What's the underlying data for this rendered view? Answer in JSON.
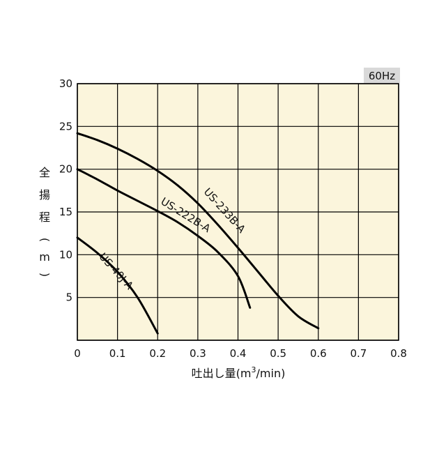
{
  "badge": {
    "text": "60Hz",
    "bg": "#d9d9d9"
  },
  "colors": {
    "plot_bg": "#fbf5dc",
    "grid": "#000000",
    "curve": "#000000"
  },
  "chart_data": {
    "type": "line",
    "title": "",
    "xlabel_prefix": "吐出し量(m",
    "xlabel_sup": "3",
    "xlabel_suffix": "/min)",
    "ylabel": "全揚程(m)",
    "xlim": [
      0,
      0.8
    ],
    "ylim": [
      0,
      30
    ],
    "grid": true,
    "x_ticks": [
      "0",
      "0.1",
      "0.2",
      "0.3",
      "0.4",
      "0.5",
      "0.6",
      "0.7",
      "0.8"
    ],
    "y_ticks": [
      "5",
      "10",
      "15",
      "20",
      "25",
      "30"
    ],
    "series": [
      {
        "name": "US-233B-A",
        "points": [
          [
            0,
            24.2
          ],
          [
            0.05,
            23.4
          ],
          [
            0.1,
            22.4
          ],
          [
            0.15,
            21.2
          ],
          [
            0.2,
            19.8
          ],
          [
            0.25,
            18.1
          ],
          [
            0.3,
            16.0
          ],
          [
            0.35,
            13.5
          ],
          [
            0.4,
            10.8
          ],
          [
            0.45,
            8.0
          ],
          [
            0.5,
            5.2
          ],
          [
            0.55,
            2.8
          ],
          [
            0.6,
            1.4
          ]
        ],
        "label_at": [
          0.36,
          14.9
        ]
      },
      {
        "name": "US-222B-A",
        "points": [
          [
            0,
            20.0
          ],
          [
            0.05,
            18.8
          ],
          [
            0.1,
            17.5
          ],
          [
            0.15,
            16.3
          ],
          [
            0.2,
            15.1
          ],
          [
            0.25,
            13.8
          ],
          [
            0.3,
            12.2
          ],
          [
            0.35,
            10.3
          ],
          [
            0.4,
            7.5
          ],
          [
            0.43,
            3.8
          ]
        ],
        "label_at": [
          0.265,
          14.3
        ]
      },
      {
        "name": "US-40J-A",
        "points": [
          [
            0,
            12.0
          ],
          [
            0.05,
            10.2
          ],
          [
            0.1,
            8.0
          ],
          [
            0.15,
            5.0
          ],
          [
            0.2,
            0.8
          ]
        ],
        "label_at": [
          0.09,
          7.8
        ]
      }
    ]
  }
}
